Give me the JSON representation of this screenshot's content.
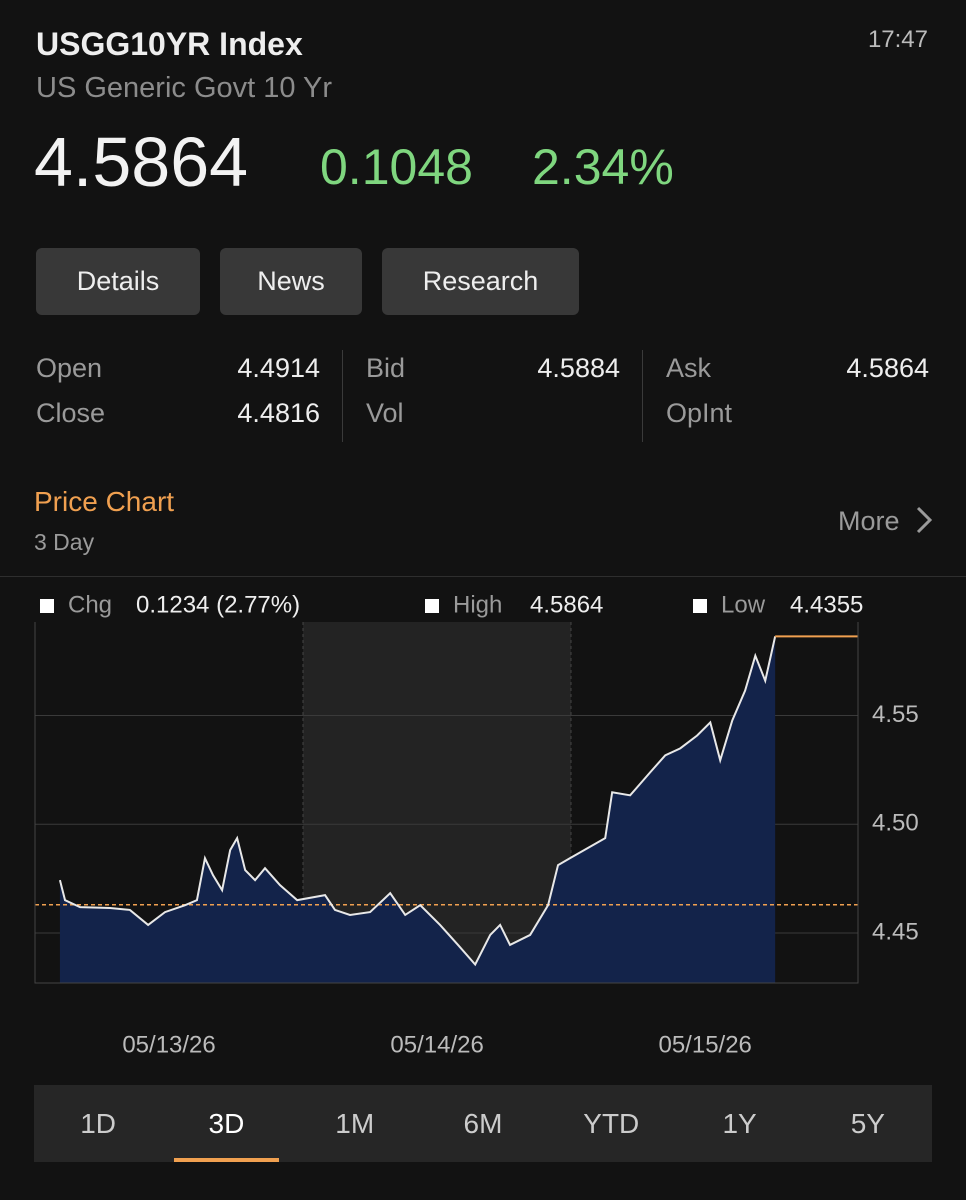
{
  "header": {
    "ticker": "USGG10YR Index",
    "name": "US Generic Govt 10 Yr",
    "time": "17:47"
  },
  "quote": {
    "price": "4.5864",
    "change": "0.1048",
    "change_pct": "2.34%"
  },
  "tabs": [
    "Details",
    "News",
    "Research"
  ],
  "stats": [
    [
      {
        "label": "Open",
        "value": "4.4914"
      },
      {
        "label": "Close",
        "value": "4.4816"
      }
    ],
    [
      {
        "label": "Bid",
        "value": "4.5884"
      },
      {
        "label": "Vol"
      }
    ],
    [
      {
        "label": "Ask",
        "value": "4.5864"
      },
      {
        "label": "OpInt"
      }
    ]
  ],
  "section": {
    "title": "Price Chart",
    "subtitle": "3 Day",
    "more": "More"
  },
  "chart_data": {
    "type": "line",
    "legend": [
      {
        "name": "Chg",
        "value": "0.1234 (2.77%)"
      },
      {
        "name": "High",
        "value": "4.5864"
      },
      {
        "name": "Low",
        "value": "4.4355"
      }
    ],
    "x": [
      0.093,
      0.112,
      0.168,
      0.28,
      0.354,
      0.422,
      0.485,
      0.56,
      0.604,
      0.634,
      0.664,
      0.698,
      0.728,
      0.754,
      0.784,
      0.821,
      0.858,
      0.914,
      0.978,
      1.082,
      1.119,
      1.175,
      1.25,
      1.325,
      1.381,
      1.437,
      1.511,
      1.578,
      1.642,
      1.698,
      1.735,
      1.772,
      1.847,
      1.914,
      1.951,
      1.996,
      2.127,
      2.153,
      2.22,
      2.295,
      2.351,
      2.407,
      2.47,
      2.519,
      2.556,
      2.601,
      2.649,
      2.687,
      2.724,
      2.761
    ],
    "series": [
      {
        "color": "#e8e8e8",
        "values": [
          4.4743,
          4.4651,
          4.4619,
          4.4615,
          4.4606,
          4.4537,
          4.4596,
          4.4628,
          4.4651,
          4.4844,
          4.4766,
          4.4697,
          4.4881,
          4.4936,
          4.4789,
          4.4743,
          4.4798,
          4.472,
          4.4651,
          4.4674,
          4.4606,
          4.4583,
          4.4596,
          4.4683,
          4.4583,
          4.4628,
          4.4537,
          4.4445,
          4.4355,
          4.4491,
          4.4537,
          4.4445,
          4.4491,
          4.4628,
          4.4812,
          4.4844,
          4.4936,
          4.5147,
          4.5133,
          4.5239,
          4.5317,
          4.5349,
          4.5408,
          4.5468,
          4.5294,
          4.5477,
          4.5615,
          4.5775,
          4.566,
          4.5864
        ]
      }
    ],
    "area_color": "#13234a",
    "reference": 4.463,
    "reference_color": "#f0a050",
    "xlim": [
      0,
      3.07
    ],
    "xticks": [
      {
        "value": 0.5,
        "label": "05/13/26"
      },
      {
        "value": 1.5,
        "label": "05/14/26"
      },
      {
        "value": 2.5,
        "label": "05/15/26"
      }
    ],
    "ylim": [
      4.427,
      4.593
    ],
    "yticks": [
      4.45,
      {
        "value": 4.5,
        "label": "4.50"
      },
      4.55
    ],
    "grid": true
  },
  "ranges": [
    "1D",
    "3D",
    "1M",
    "6M",
    "YTD",
    "1Y",
    "5Y"
  ],
  "selected_range": 1
}
